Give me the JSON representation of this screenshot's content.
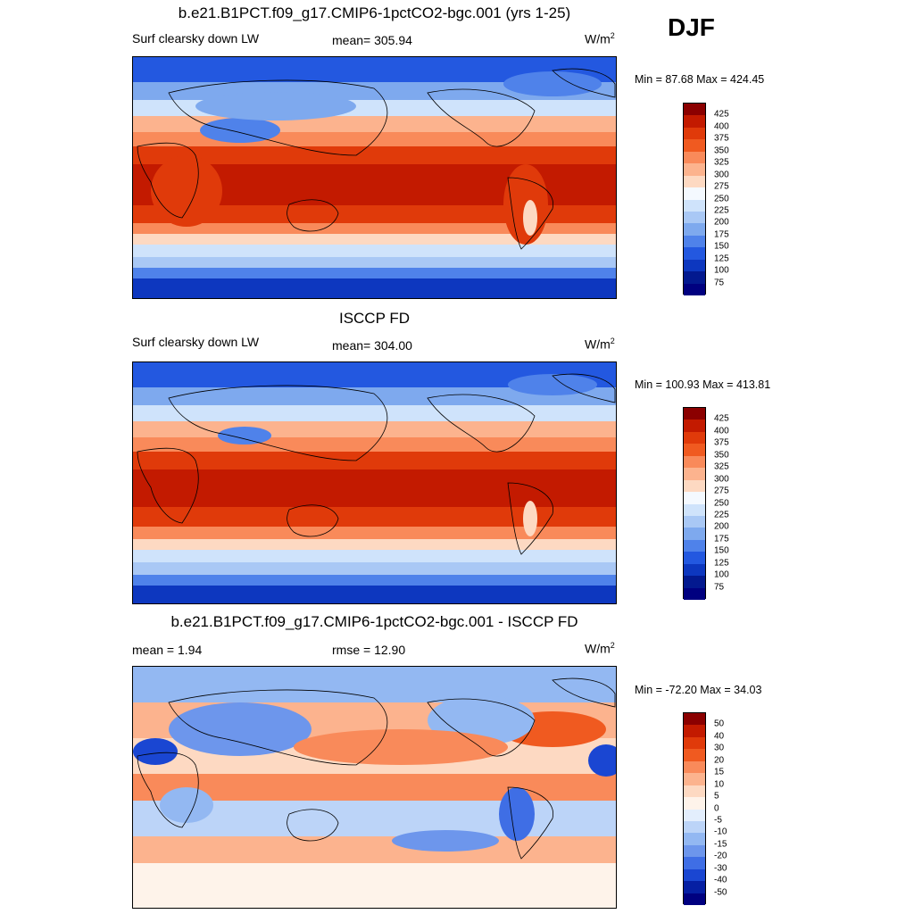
{
  "season": "DJF",
  "panels": [
    {
      "title": "b.e21.B1PCT.f09_g17.CMIP6-1pctCO2-bgc.001 (yrs 1-25)",
      "left_label": "Surf clearsky down LW",
      "center_label": "mean= 305.94",
      "units": "W/m",
      "units_sup": "2",
      "minmax": "Min =  87.68 Max = 424.45",
      "colorbar": [
        "425",
        "400",
        "375",
        "350",
        "325",
        "300",
        "275",
        "250",
        "225",
        "200",
        "175",
        "150",
        "125",
        "100",
        "75"
      ]
    },
    {
      "title": "ISCCP FD",
      "left_label": "Surf clearsky down LW",
      "center_label": "mean= 304.00",
      "units": "W/m",
      "units_sup": "2",
      "minmax": "Min = 100.93 Max = 413.81",
      "colorbar": [
        "425",
        "400",
        "375",
        "350",
        "325",
        "300",
        "275",
        "250",
        "225",
        "200",
        "175",
        "150",
        "125",
        "100",
        "75"
      ]
    },
    {
      "title": "b.e21.B1PCT.f09_g17.CMIP6-1pctCO2-bgc.001 - ISCCP FD",
      "left_label": "mean =   1.94",
      "center_label": "rmse =  12.90",
      "units": "W/m",
      "units_sup": "2",
      "minmax": "Min = -72.20 Max =  34.03",
      "colorbar": [
        "50",
        "40",
        "30",
        "20",
        "15",
        "10",
        "5",
        "0",
        "-5",
        "-10",
        "-15",
        "-20",
        "-30",
        "-40",
        "-50"
      ]
    }
  ],
  "colors": {
    "abs_scale": [
      "#8b0000",
      "#c31a00",
      "#e03a0a",
      "#f05a20",
      "#f98a5a",
      "#fcb38e",
      "#fdd9c2",
      "#f4f9ff",
      "#cfe3fb",
      "#a9c8f5",
      "#7ea9ee",
      "#4f82ea",
      "#2358e0",
      "#0d37bf",
      "#03198f",
      "#000080"
    ],
    "diff_scale": [
      "#8b0000",
      "#c31a00",
      "#e03a0a",
      "#f05a20",
      "#f98a5a",
      "#fcb38e",
      "#fdd9c2",
      "#fef3ea",
      "#e3eefd",
      "#bcd4f8",
      "#93b8f2",
      "#6d96ec",
      "#3f6ee5",
      "#1a46d2",
      "#061fa3",
      "#000080"
    ]
  }
}
